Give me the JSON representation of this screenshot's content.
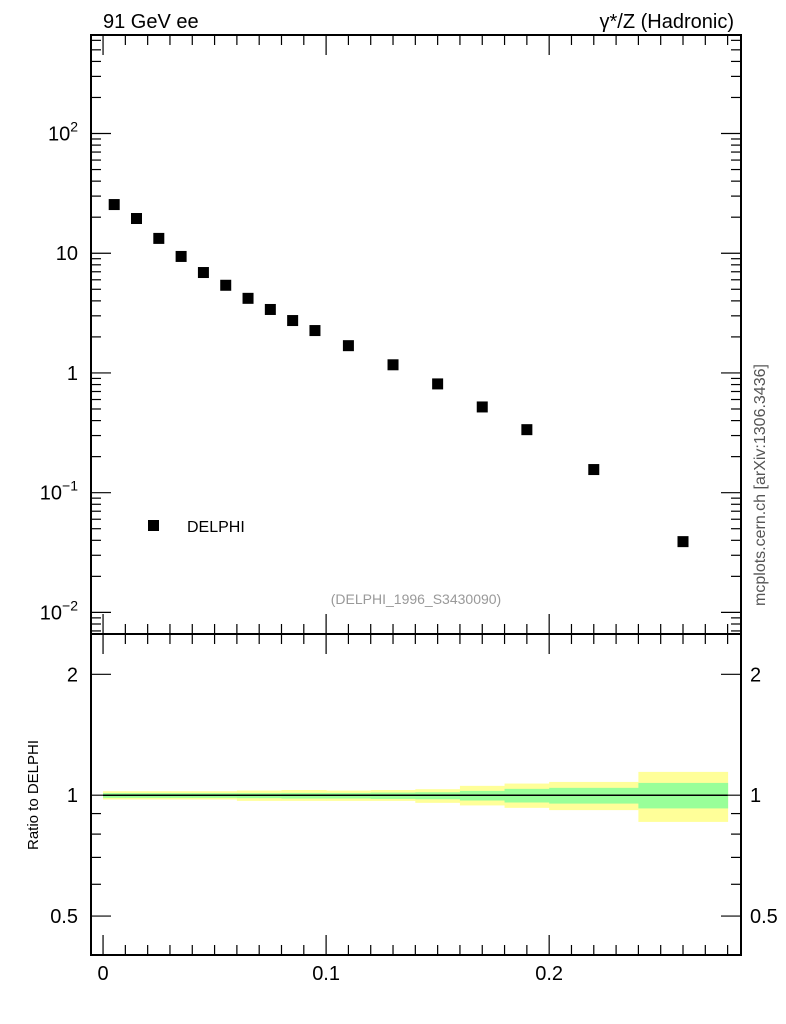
{
  "header": {
    "left": "91 GeV ee",
    "right": "γ*/Z (Hadronic)"
  },
  "side_label": "mcplots.cern.ch [arXiv:1306.3436]",
  "analysis_label": "(DELPHI_1996_S3430090)",
  "colors": {
    "marker": "#000000",
    "stat_band": "#99ff99",
    "total_band": "#ffff99",
    "analysis_label": "#999999"
  },
  "chart_data": [
    {
      "type": "scatter",
      "panel": "main",
      "yscale": "log",
      "xlim": [
        -0.0054,
        0.286
      ],
      "ylim": [
        0.0066,
        665
      ],
      "xticks": [
        0,
        0.1,
        0.2
      ],
      "yticks": [
        {
          "value": 100,
          "base": "10",
          "exp": "2"
        },
        {
          "value": 10,
          "base": "10",
          "exp": ""
        },
        {
          "value": 1,
          "base": "1",
          "exp": ""
        },
        {
          "value": 0.1,
          "base": "10",
          "exp": "−1"
        },
        {
          "value": 0.01,
          "base": "10",
          "exp": "−2"
        }
      ],
      "legend": {
        "label": "DELPHI",
        "placement": "bottom-left"
      },
      "series": [
        {
          "name": "DELPHI",
          "x": [
            0.005,
            0.015,
            0.025,
            0.035,
            0.045,
            0.055,
            0.065,
            0.075,
            0.085,
            0.095,
            0.11,
            0.13,
            0.15,
            0.17,
            0.19,
            0.22,
            0.26
          ],
          "y": [
            25.5,
            19.5,
            13.3,
            9.4,
            6.9,
            5.4,
            4.2,
            3.39,
            2.74,
            2.26,
            1.69,
            1.17,
            0.81,
            0.52,
            0.336,
            0.156,
            0.039
          ]
        }
      ]
    },
    {
      "type": "area",
      "panel": "ratio",
      "yscale": "log",
      "ylabel": "Ratio to DELPHI",
      "xlim": [
        -0.0054,
        0.286
      ],
      "ylim": [
        0.4,
        2.52
      ],
      "xticks": [
        0,
        0.1,
        0.2
      ],
      "xticklabels": [
        "0",
        "0.1",
        "0.2"
      ],
      "yticks": [
        2,
        1,
        0.5
      ],
      "yticklabels": [
        "2",
        "1",
        "0.5"
      ],
      "bins": [
        [
          0,
          0.01
        ],
        [
          0.01,
          0.02
        ],
        [
          0.02,
          0.03
        ],
        [
          0.03,
          0.04
        ],
        [
          0.04,
          0.05
        ],
        [
          0.05,
          0.06
        ],
        [
          0.06,
          0.07
        ],
        [
          0.07,
          0.08
        ],
        [
          0.08,
          0.09
        ],
        [
          0.09,
          0.1
        ],
        [
          0.1,
          0.12
        ],
        [
          0.12,
          0.14
        ],
        [
          0.14,
          0.16
        ],
        [
          0.16,
          0.18
        ],
        [
          0.18,
          0.2
        ],
        [
          0.2,
          0.24
        ],
        [
          0.24,
          0.28
        ]
      ],
      "total_band": {
        "upper": [
          1.023,
          1.023,
          1.023,
          1.023,
          1.023,
          1.023,
          1.027,
          1.027,
          1.03,
          1.03,
          1.027,
          1.03,
          1.035,
          1.055,
          1.069,
          1.079,
          1.143
        ],
        "lower": [
          0.976,
          0.976,
          0.976,
          0.976,
          0.976,
          0.976,
          0.968,
          0.968,
          0.968,
          0.968,
          0.968,
          0.968,
          0.957,
          0.943,
          0.93,
          0.918,
          0.858
        ]
      },
      "stat_band": {
        "upper": [
          1.012,
          1.012,
          1.012,
          1.012,
          1.012,
          1.012,
          1.012,
          1.012,
          1.013,
          1.013,
          1.013,
          1.015,
          1.017,
          1.025,
          1.037,
          1.043,
          1.073
        ],
        "lower": [
          0.985,
          0.985,
          0.985,
          0.985,
          0.985,
          0.985,
          0.983,
          0.983,
          0.981,
          0.981,
          0.981,
          0.979,
          0.977,
          0.97,
          0.959,
          0.953,
          0.927
        ]
      },
      "reference_line": 1
    }
  ]
}
